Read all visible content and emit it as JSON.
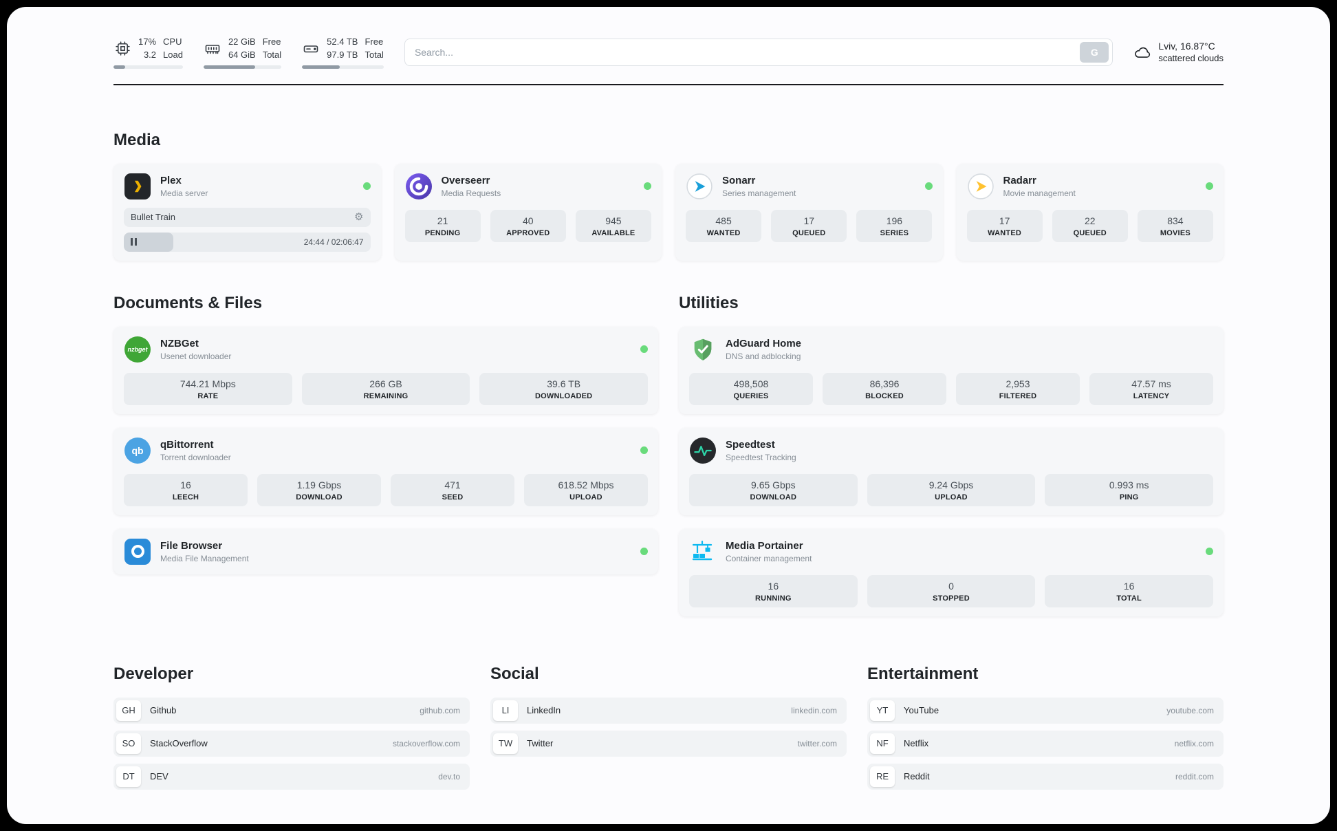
{
  "colors": {
    "status_online": "#69db7c",
    "plex_accent": "#ebaf00",
    "sonarr_blue": "#1a9fd9",
    "radarr_amber": "#ffc230"
  },
  "header": {
    "cpu": {
      "value_top": "17%",
      "value_bottom": "3.2",
      "label_top": "CPU",
      "label_bottom": "Load",
      "progress_percent": 17
    },
    "ram": {
      "value_top": "22 GiB",
      "value_bottom": "64 GiB",
      "label_top": "Free",
      "label_bottom": "Total",
      "progress_percent": 66
    },
    "disk": {
      "value_top": "52.4 TB",
      "value_bottom": "97.9 TB",
      "label_top": "Free",
      "label_bottom": "Total",
      "progress_percent": 46
    },
    "search": {
      "placeholder": "Search...",
      "button_label": "G"
    },
    "weather": {
      "location": "Lviv, 16.87°C",
      "condition": "scattered clouds"
    }
  },
  "media": {
    "title": "Media",
    "plex": {
      "name": "Plex",
      "subtitle": "Media server",
      "now_playing": "Bullet Train",
      "time": "24:44 / 02:06:47",
      "progress_percent": 20
    },
    "overseerr": {
      "name": "Overseerr",
      "subtitle": "Media Requests",
      "stats": [
        {
          "value": "21",
          "label": "PENDING"
        },
        {
          "value": "40",
          "label": "APPROVED"
        },
        {
          "value": "945",
          "label": "AVAILABLE"
        }
      ]
    },
    "sonarr": {
      "name": "Sonarr",
      "subtitle": "Series management",
      "stats": [
        {
          "value": "485",
          "label": "WANTED"
        },
        {
          "value": "17",
          "label": "QUEUED"
        },
        {
          "value": "196",
          "label": "SERIES"
        }
      ]
    },
    "radarr": {
      "name": "Radarr",
      "subtitle": "Movie management",
      "stats": [
        {
          "value": "17",
          "label": "WANTED"
        },
        {
          "value": "22",
          "label": "QUEUED"
        },
        {
          "value": "834",
          "label": "MOVIES"
        }
      ]
    }
  },
  "documents": {
    "title": "Documents & Files",
    "nzbget": {
      "name": "NZBGet",
      "subtitle": "Usenet downloader",
      "badge": "nzbget",
      "stats": [
        {
          "value": "744.21 Mbps",
          "label": "RATE"
        },
        {
          "value": "266 GB",
          "label": "REMAINING"
        },
        {
          "value": "39.6 TB",
          "label": "DOWNLOADED"
        }
      ]
    },
    "qbittorrent": {
      "name": "qBittorrent",
      "subtitle": "Torrent downloader",
      "badge": "qb",
      "stats": [
        {
          "value": "16",
          "label": "LEECH"
        },
        {
          "value": "1.19 Gbps",
          "label": "DOWNLOAD"
        },
        {
          "value": "471",
          "label": "SEED"
        },
        {
          "value": "618.52 Mbps",
          "label": "UPLOAD"
        }
      ]
    },
    "filebrowser": {
      "name": "File Browser",
      "subtitle": "Media File Management"
    }
  },
  "utilities": {
    "title": "Utilities",
    "adguard": {
      "name": "AdGuard Home",
      "subtitle": "DNS and adblocking",
      "stats": [
        {
          "value": "498,508",
          "label": "QUERIES"
        },
        {
          "value": "86,396",
          "label": "BLOCKED"
        },
        {
          "value": "2,953",
          "label": "FILTERED"
        },
        {
          "value": "47.57 ms",
          "label": "LATENCY"
        }
      ]
    },
    "speedtest": {
      "name": "Speedtest",
      "subtitle": "Speedtest Tracking",
      "stats": [
        {
          "value": "9.65 Gbps",
          "label": "DOWNLOAD"
        },
        {
          "value": "9.24 Gbps",
          "label": "UPLOAD"
        },
        {
          "value": "0.993 ms",
          "label": "PING"
        }
      ]
    },
    "portainer": {
      "name": "Media Portainer",
      "subtitle": "Container management",
      "stats": [
        {
          "value": "16",
          "label": "RUNNING"
        },
        {
          "value": "0",
          "label": "STOPPED"
        },
        {
          "value": "16",
          "label": "TOTAL"
        }
      ]
    }
  },
  "bookmarks": {
    "developer": {
      "title": "Developer",
      "items": [
        {
          "badge": "GH",
          "name": "Github",
          "url": "github.com"
        },
        {
          "badge": "SO",
          "name": "StackOverflow",
          "url": "stackoverflow.com"
        },
        {
          "badge": "DT",
          "name": "DEV",
          "url": "dev.to"
        }
      ]
    },
    "social": {
      "title": "Social",
      "items": [
        {
          "badge": "LI",
          "name": "LinkedIn",
          "url": "linkedin.com"
        },
        {
          "badge": "TW",
          "name": "Twitter",
          "url": "twitter.com"
        }
      ]
    },
    "entertainment": {
      "title": "Entertainment",
      "items": [
        {
          "badge": "YT",
          "name": "YouTube",
          "url": "youtube.com"
        },
        {
          "badge": "NF",
          "name": "Netflix",
          "url": "netflix.com"
        },
        {
          "badge": "RE",
          "name": "Reddit",
          "url": "reddit.com"
        }
      ]
    }
  }
}
